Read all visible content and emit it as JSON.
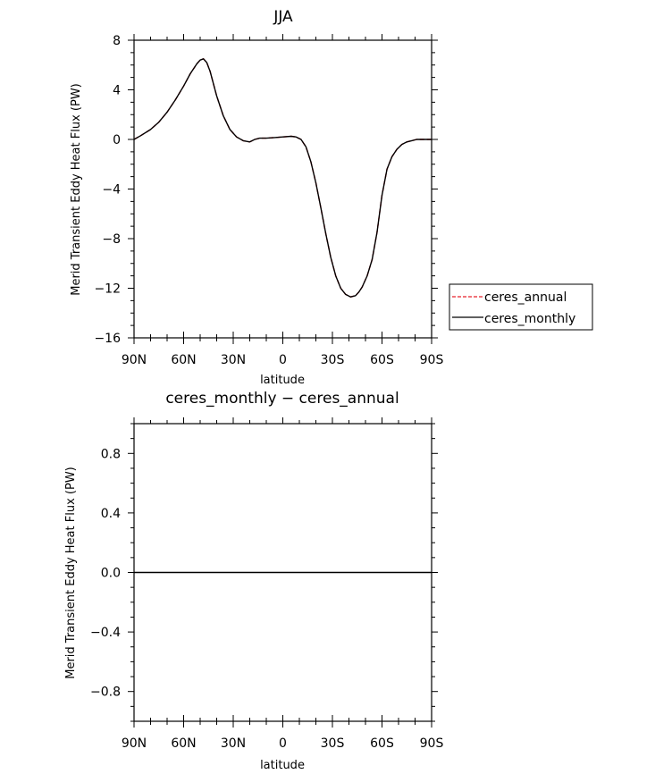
{
  "chart_data": [
    {
      "type": "line",
      "title": "JJA",
      "xlabel": "latitude",
      "ylabel": "Merid Transient Eddy Heat Flux (PW)",
      "x_tick_labels": [
        "90N",
        "60N",
        "30N",
        "0",
        "30S",
        "60S",
        "90S"
      ],
      "x_tick_values": [
        90,
        60,
        30,
        0,
        -30,
        -60,
        -90
      ],
      "ylim": [
        -16,
        8
      ],
      "y_ticks": [
        8,
        4,
        0,
        -4,
        -8,
        -12,
        -16
      ],
      "y_tick_labels": [
        "8",
        "4",
        "0",
        "−4",
        "−8",
        "−12",
        "−16"
      ],
      "legend_position": "right",
      "series": [
        {
          "name": "ceres_annual",
          "color": "#e8202a",
          "style": "dashed",
          "x": [
            90,
            86,
            80,
            75,
            70,
            65,
            60,
            56,
            52,
            50,
            48,
            46,
            44,
            42,
            40,
            36,
            32,
            28,
            24,
            20,
            17,
            14,
            10,
            5,
            0,
            -5,
            -8,
            -11,
            -14,
            -17,
            -20,
            -23,
            -26,
            -29,
            -32,
            -35,
            -38,
            -41,
            -44,
            -46,
            -48,
            -51,
            -54,
            -57,
            -60,
            -63,
            -66,
            -69,
            -72,
            -75,
            -78,
            -81,
            -84,
            -87,
            -90
          ],
          "y": [
            0,
            0.3,
            0.8,
            1.4,
            2.2,
            3.2,
            4.3,
            5.3,
            6.1,
            6.4,
            6.5,
            6.2,
            5.5,
            4.5,
            3.5,
            1.9,
            0.8,
            0.2,
            -0.1,
            -0.2,
            0,
            0.1,
            0.1,
            0.15,
            0.2,
            0.25,
            0.2,
            0,
            -0.6,
            -1.8,
            -3.5,
            -5.5,
            -7.6,
            -9.5,
            -11.0,
            -12.0,
            -12.5,
            -12.7,
            -12.6,
            -12.3,
            -11.9,
            -11.0,
            -9.7,
            -7.5,
            -4.5,
            -2.4,
            -1.4,
            -0.8,
            -0.4,
            -0.2,
            -0.1,
            0,
            0,
            0,
            0
          ]
        },
        {
          "name": "ceres_monthly",
          "color": "#000000",
          "style": "solid",
          "x": [
            90,
            86,
            80,
            75,
            70,
            65,
            60,
            56,
            52,
            50,
            48,
            46,
            44,
            42,
            40,
            36,
            32,
            28,
            24,
            20,
            17,
            14,
            10,
            5,
            0,
            -5,
            -8,
            -11,
            -14,
            -17,
            -20,
            -23,
            -26,
            -29,
            -32,
            -35,
            -38,
            -41,
            -44,
            -46,
            -48,
            -51,
            -54,
            -57,
            -60,
            -63,
            -66,
            -69,
            -72,
            -75,
            -78,
            -81,
            -84,
            -87,
            -90
          ],
          "y": [
            0,
            0.3,
            0.8,
            1.4,
            2.2,
            3.2,
            4.3,
            5.3,
            6.1,
            6.4,
            6.5,
            6.2,
            5.5,
            4.5,
            3.5,
            1.9,
            0.8,
            0.2,
            -0.1,
            -0.2,
            0,
            0.1,
            0.1,
            0.15,
            0.2,
            0.25,
            0.2,
            0,
            -0.6,
            -1.8,
            -3.5,
            -5.5,
            -7.6,
            -9.5,
            -11.0,
            -12.0,
            -12.5,
            -12.7,
            -12.6,
            -12.3,
            -11.9,
            -11.0,
            -9.7,
            -7.5,
            -4.5,
            -2.4,
            -1.4,
            -0.8,
            -0.4,
            -0.2,
            -0.1,
            0,
            0,
            0,
            0
          ]
        }
      ]
    },
    {
      "type": "line",
      "title": "ceres_monthly − ceres_annual",
      "xlabel": "latitude",
      "ylabel": "Merid Transient Eddy Heat Flux (PW)",
      "x_tick_labels": [
        "90N",
        "60N",
        "30N",
        "0",
        "30S",
        "60S",
        "90S"
      ],
      "x_tick_values": [
        90,
        60,
        30,
        0,
        -30,
        -60,
        -90
      ],
      "ylim": [
        -1,
        1
      ],
      "y_ticks": [
        0.8,
        0.4,
        0.0,
        -0.4,
        -0.8
      ],
      "y_tick_labels": [
        "0.8",
        "0.4",
        "0.0",
        "−0.4",
        "−0.8"
      ],
      "series": [
        {
          "color": "#000000",
          "style": "solid",
          "x": [
            90,
            -90
          ],
          "y": [
            0,
            0
          ]
        }
      ]
    }
  ]
}
